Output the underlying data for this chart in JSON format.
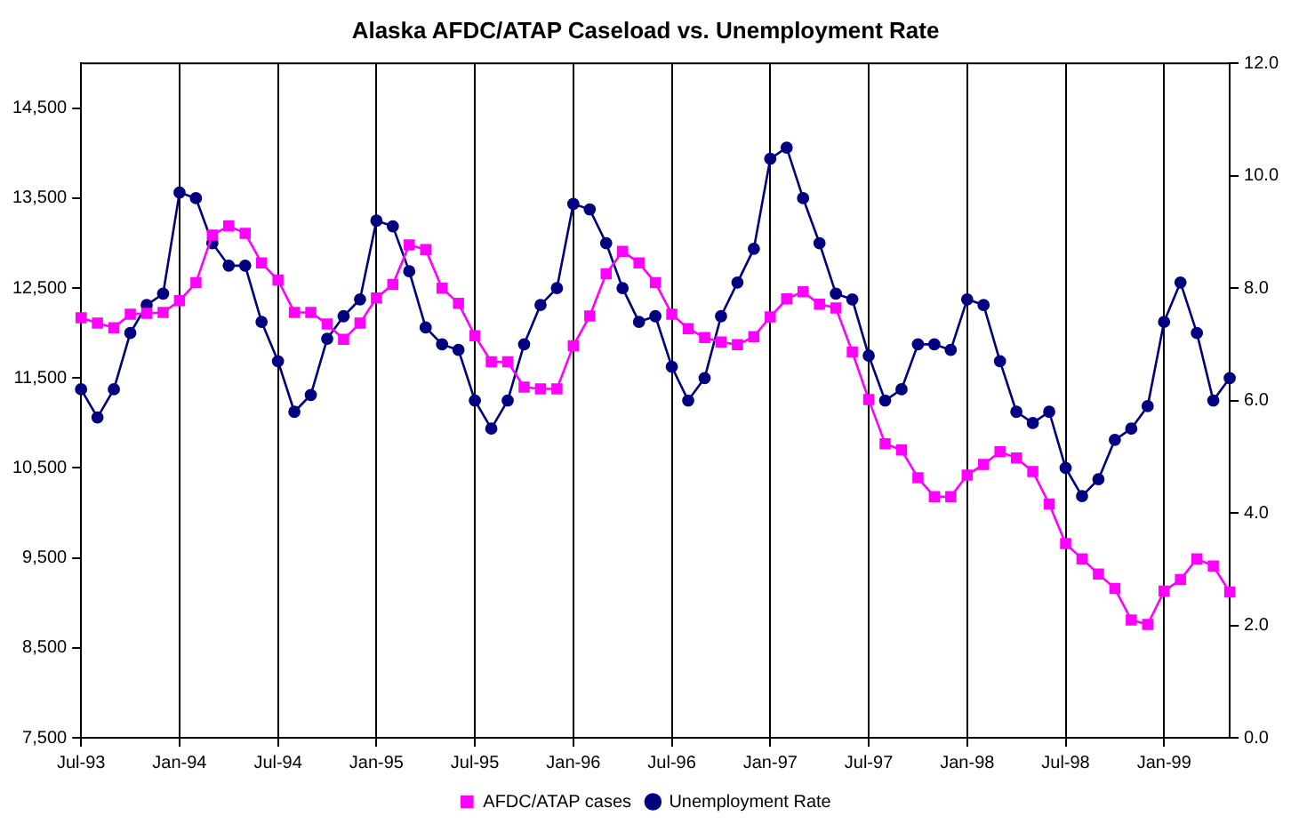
{
  "chart_data": {
    "type": "line",
    "title": "Alaska AFDC/ATAP Caseload vs. Unemployment Rate",
    "categories": [
      "Jul-93",
      null,
      null,
      null,
      null,
      null,
      "Jan-94",
      null,
      null,
      null,
      null,
      null,
      "Jul-94",
      null,
      null,
      null,
      null,
      null,
      "Jan-95",
      null,
      null,
      null,
      null,
      null,
      "Jul-95",
      null,
      null,
      null,
      null,
      null,
      "Jan-96",
      null,
      null,
      null,
      null,
      null,
      "Jul-96",
      null,
      null,
      null,
      null,
      null,
      "Jan-97",
      null,
      null,
      null,
      null,
      null,
      "Jul-97",
      null,
      null,
      null,
      null,
      null,
      "Jan-98",
      null,
      null,
      null,
      null,
      null,
      "Jul-98",
      null,
      null,
      null,
      null,
      null,
      "Jan-99",
      null,
      null,
      null,
      null
    ],
    "series": [
      {
        "name": "AFDC/ATAP cases",
        "color": "#ff00ff",
        "marker": "square",
        "values": [
          12170,
          12110,
          12060,
          12210,
          12220,
          12230,
          12360,
          12560,
          13090,
          13190,
          13110,
          12780,
          12590,
          12230,
          12230,
          12100,
          11930,
          12110,
          12390,
          12540,
          12980,
          12930,
          12500,
          12330,
          11970,
          11680,
          11680,
          11400,
          11380,
          11380,
          11860,
          12190,
          12660,
          12910,
          12780,
          12560,
          12210,
          12050,
          11950,
          11900,
          11870,
          11960,
          12180,
          12380,
          12460,
          12320,
          12280,
          11790,
          11260,
          10770,
          10700,
          10390,
          10180,
          10180,
          10420,
          10540,
          10680,
          10610,
          10460,
          10100,
          9660,
          9490,
          9320,
          9160,
          8810,
          8760,
          9130,
          9260,
          9490,
          9410,
          9120
        ]
      },
      {
        "name": "Unemployment Rate",
        "color": "#000080",
        "marker": "circle",
        "axis": "y2",
        "values": [
          6.2,
          5.7,
          6.2,
          7.2,
          7.7,
          7.9,
          9.7,
          9.6,
          8.8,
          8.4,
          8.4,
          7.4,
          6.7,
          5.8,
          6.1,
          7.1,
          7.5,
          7.8,
          9.2,
          9.1,
          8.3,
          7.3,
          7.0,
          6.9,
          6.0,
          5.5,
          6.0,
          7.0,
          7.7,
          8.0,
          9.5,
          9.4,
          8.8,
          8.0,
          7.4,
          7.5,
          6.6,
          6.0,
          6.4,
          7.5,
          8.1,
          8.7,
          10.3,
          10.5,
          9.6,
          8.8,
          7.9,
          7.8,
          6.8,
          6.0,
          6.2,
          7.0,
          7.0,
          6.9,
          7.8,
          7.7,
          6.7,
          5.8,
          5.6,
          5.8,
          4.8,
          4.3,
          4.6,
          5.3,
          5.5,
          5.9,
          7.4,
          8.1,
          7.2,
          6.0,
          6.4
        ]
      }
    ],
    "ylim": [
      7500,
      15000
    ],
    "yticks": [
      {
        "value": 7500,
        "label": "7,500"
      },
      {
        "value": 8500,
        "label": "8,500"
      },
      {
        "value": 9500,
        "label": "9,500"
      },
      {
        "value": 10500,
        "label": "10,500"
      },
      {
        "value": 11500,
        "label": "11,500"
      },
      {
        "value": 12500,
        "label": "12,500"
      },
      {
        "value": 13500,
        "label": "13,500"
      },
      {
        "value": 14500,
        "label": "14,500"
      }
    ],
    "y2lim": [
      0,
      12
    ],
    "y2ticks": [
      {
        "value": 0,
        "label": "0.0"
      },
      {
        "value": 2,
        "label": "2.0"
      },
      {
        "value": 4,
        "label": "4.0"
      },
      {
        "value": 6,
        "label": "6.0"
      },
      {
        "value": 8,
        "label": "8.0"
      },
      {
        "value": 10,
        "label": "10.0"
      },
      {
        "value": 12,
        "label": "12.0"
      }
    ],
    "grid": "x",
    "legend": "bottom"
  }
}
